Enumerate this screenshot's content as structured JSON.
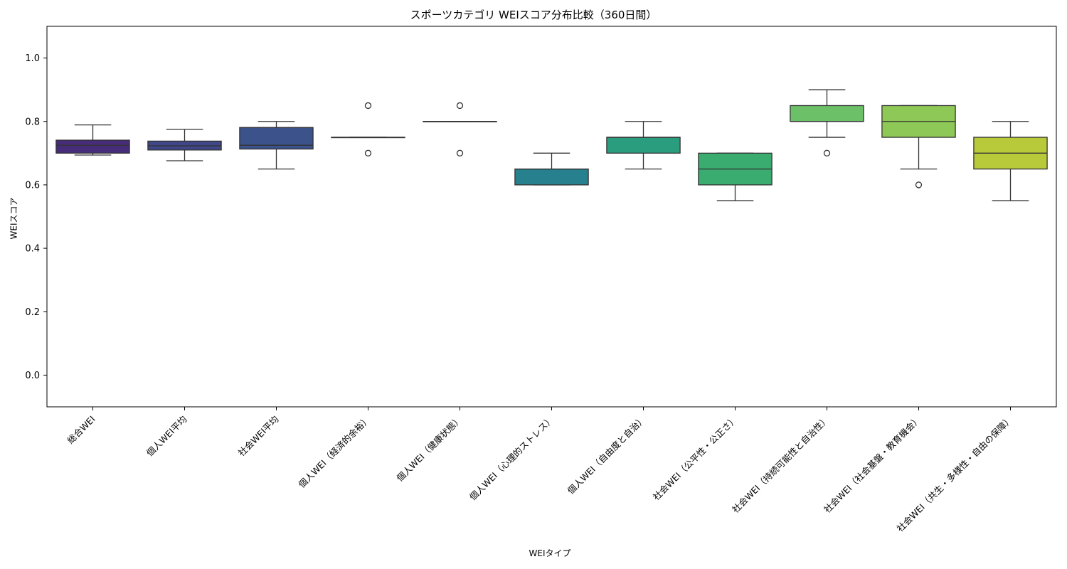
{
  "chart_data": {
    "type": "box",
    "title": "スポーツカテゴリ WEIスコア分布比較（360日間）",
    "xlabel": "WEIタイプ",
    "ylabel": "WEIスコア",
    "ylim": [
      -0.1,
      1.1
    ],
    "yticks": [
      "0.0",
      "0.2",
      "0.4",
      "0.6",
      "0.8",
      "1.0"
    ],
    "ytick_values": [
      0.0,
      0.2,
      0.4,
      0.6,
      0.8,
      1.0
    ],
    "grid": false,
    "legend": "none",
    "categories": [
      "総合WEI",
      "個人WEI平均",
      "社会WEI平均",
      "個人WEI（経済的余裕）",
      "個人WEI（健康状態）",
      "個人WEI（心理的ストレス）",
      "個人WEI（自由度と自治）",
      "社会WEI（公平性・公正さ）",
      "社会WEI（持続可能性と自治性）",
      "社会WEI（社会基盤・教育機会）",
      "社会WEI（共生・多様性・自由の保障）"
    ],
    "boxes": [
      {
        "whisker_low": 0.694,
        "q1": 0.7,
        "median": 0.725,
        "q3": 0.741,
        "whisker_high": 0.789,
        "outliers": []
      },
      {
        "whisker_low": 0.676,
        "q1": 0.71,
        "median": 0.723,
        "q3": 0.738,
        "whisker_high": 0.775,
        "outliers": []
      },
      {
        "whisker_low": 0.65,
        "q1": 0.713,
        "median": 0.725,
        "q3": 0.781,
        "whisker_high": 0.8,
        "outliers": []
      },
      {
        "whisker_low": 0.75,
        "q1": 0.75,
        "median": 0.75,
        "q3": 0.75,
        "whisker_high": 0.75,
        "outliers": [
          0.85,
          0.7
        ]
      },
      {
        "whisker_low": 0.8,
        "q1": 0.8,
        "median": 0.8,
        "q3": 0.8,
        "whisker_high": 0.8,
        "outliers": [
          0.85,
          0.7
        ]
      },
      {
        "whisker_low": 0.6,
        "q1": 0.6,
        "median": 0.65,
        "q3": 0.65,
        "whisker_high": 0.7,
        "outliers": []
      },
      {
        "whisker_low": 0.65,
        "q1": 0.7,
        "median": 0.75,
        "q3": 0.75,
        "whisker_high": 0.8,
        "outliers": []
      },
      {
        "whisker_low": 0.55,
        "q1": 0.6,
        "median": 0.65,
        "q3": 0.7,
        "whisker_high": 0.7,
        "outliers": []
      },
      {
        "whisker_low": 0.75,
        "q1": 0.8,
        "median": 0.8,
        "q3": 0.85,
        "whisker_high": 0.9,
        "outliers": [
          0.7
        ]
      },
      {
        "whisker_low": 0.65,
        "q1": 0.75,
        "median": 0.8,
        "q3": 0.85,
        "whisker_high": 0.85,
        "outliers": [
          0.6
        ]
      },
      {
        "whisker_low": 0.55,
        "q1": 0.65,
        "median": 0.7,
        "q3": 0.75,
        "whisker_high": 0.8,
        "outliers": []
      }
    ],
    "colors": [
      "#482475",
      "#433e85",
      "#38598c",
      "#2d708e",
      "#25858e",
      "#1e9b8a",
      "#2ab07f",
      "#52c569",
      "#86d549",
      "#c2df23",
      "#fde725"
    ],
    "box_colors": [
      "#472c7a",
      "#3f4788",
      "#3b528b",
      "#2c718e",
      "#21918c",
      "#27808e",
      "#2a9d7f",
      "#3aac6f",
      "#6cc068",
      "#8ec856",
      "#b8c93a"
    ]
  }
}
